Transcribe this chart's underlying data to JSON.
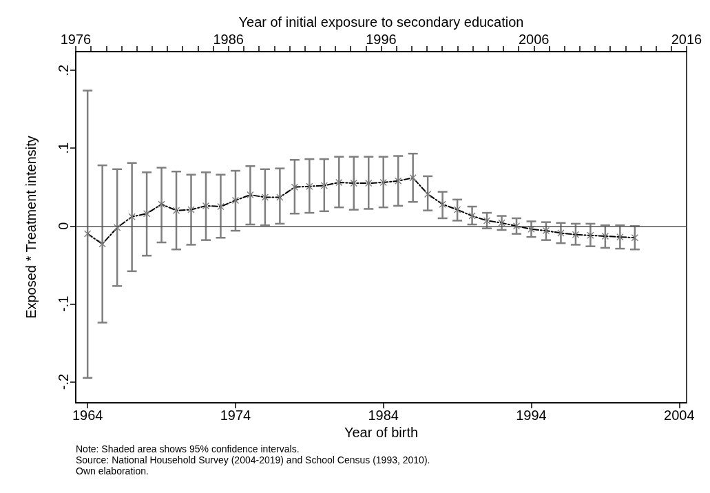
{
  "chart_data": {
    "type": "line",
    "xlabel": "Year of birth",
    "ylabel": "Exposed * Treatment intensity",
    "x2label": "Year of initial exposure to secondary education",
    "x": [
      1964,
      1965,
      1966,
      1967,
      1968,
      1969,
      1970,
      1971,
      1972,
      1973,
      1974,
      1975,
      1976,
      1977,
      1978,
      1979,
      1980,
      1981,
      1982,
      1983,
      1984,
      1985,
      1986,
      1987,
      1988,
      1989,
      1990,
      1991,
      1992,
      1993,
      1994,
      1995,
      1996,
      1997,
      1998,
      1999,
      2000,
      2001
    ],
    "series": [
      {
        "color": "#7f7f7f",
        "values": [
          -0.01,
          -0.023,
          -0.002,
          0.012,
          0.016,
          0.028,
          0.02,
          0.021,
          0.026,
          0.025,
          0.033,
          0.04,
          0.037,
          0.037,
          0.05,
          0.051,
          0.052,
          0.056,
          0.055,
          0.055,
          0.056,
          0.058,
          0.062,
          0.041,
          0.028,
          0.021,
          0.013,
          0.007,
          0.004,
          0.0,
          -0.004,
          -0.006,
          -0.009,
          -0.011,
          -0.012,
          -0.013,
          -0.014,
          -0.015
        ],
        "errors": [
          [
            -0.195,
            0.174
          ],
          [
            -0.124,
            0.078
          ],
          [
            -0.077,
            0.073
          ],
          [
            -0.058,
            0.081
          ],
          [
            -0.038,
            0.069
          ],
          [
            -0.021,
            0.075
          ],
          [
            -0.03,
            0.07
          ],
          [
            -0.024,
            0.066
          ],
          [
            -0.018,
            0.069
          ],
          [
            -0.015,
            0.066
          ],
          [
            -0.006,
            0.071
          ],
          [
            0.002,
            0.077
          ],
          [
            0.001,
            0.073
          ],
          [
            0.003,
            0.074
          ],
          [
            0.016,
            0.085
          ],
          [
            0.017,
            0.086
          ],
          [
            0.019,
            0.086
          ],
          [
            0.024,
            0.089
          ],
          [
            0.021,
            0.089
          ],
          [
            0.022,
            0.089
          ],
          [
            0.024,
            0.089
          ],
          [
            0.026,
            0.09
          ],
          [
            0.031,
            0.093
          ],
          [
            0.02,
            0.064
          ],
          [
            0.01,
            0.044
          ],
          [
            0.007,
            0.034
          ],
          [
            0.002,
            0.025
          ],
          [
            -0.003,
            0.017
          ],
          [
            -0.005,
            0.013
          ],
          [
            -0.01,
            0.01
          ],
          [
            -0.014,
            0.006
          ],
          [
            -0.018,
            0.005
          ],
          [
            -0.022,
            0.004
          ],
          [
            -0.024,
            0.003
          ],
          [
            -0.026,
            0.003
          ],
          [
            -0.028,
            0.001
          ],
          [
            -0.029,
            0.001
          ],
          [
            -0.03,
            0.0
          ]
        ]
      }
    ],
    "marker": "cross",
    "line_style": "dashed",
    "grid": false,
    "xlim": [
      1963.2,
      2004.5
    ],
    "xticks": [
      1964,
      1974,
      1984,
      1994,
      2004
    ],
    "x2lim": [
      1976,
      2016
    ],
    "x2ticks": [
      1976,
      {
        "value": 1977,
        "label": null
      },
      {
        "value": 1978,
        "label": null
      },
      {
        "value": 1979,
        "label": null
      },
      {
        "value": 1980,
        "label": null
      },
      {
        "value": 1981,
        "label": null
      },
      {
        "value": 1982,
        "label": null
      },
      {
        "value": 1983,
        "label": null
      },
      {
        "value": 1984,
        "label": null
      },
      {
        "value": 1985,
        "label": null
      },
      1986,
      {
        "value": 1987,
        "label": null
      },
      {
        "value": 1988,
        "label": null
      },
      {
        "value": 1989,
        "label": null
      },
      {
        "value": 1990,
        "label": null
      },
      {
        "value": 1991,
        "label": null
      },
      {
        "value": 1992,
        "label": null
      },
      {
        "value": 1993,
        "label": null
      },
      {
        "value": 1994,
        "label": null
      },
      {
        "value": 1995,
        "label": null
      },
      1996,
      {
        "value": 1997,
        "label": null
      },
      {
        "value": 1998,
        "label": null
      },
      {
        "value": 1999,
        "label": null
      },
      {
        "value": 2000,
        "label": null
      },
      {
        "value": 2001,
        "label": null
      },
      {
        "value": 2002,
        "label": null
      },
      {
        "value": 2003,
        "label": null
      },
      {
        "value": 2004,
        "label": null
      },
      {
        "value": 2005,
        "label": null
      },
      2006,
      {
        "value": 2007,
        "label": null
      },
      {
        "value": 2008,
        "label": null
      },
      {
        "value": 2009,
        "label": null
      },
      {
        "value": 2010,
        "label": null
      },
      {
        "value": 2011,
        "label": null
      },
      {
        "value": 2012,
        "label": null
      },
      {
        "value": 2013,
        "label": null
      },
      {
        "value": 2014,
        "label": null
      },
      {
        "value": 2015,
        "label": null
      },
      2016
    ],
    "ylim": [
      -0.227,
      0.224
    ],
    "yticks": [
      {
        "value": -0.2,
        "label": "-.2"
      },
      {
        "value": -0.1,
        "label": "-.1"
      },
      0,
      {
        "value": 0.1,
        "label": ".1"
      },
      {
        "value": 0.2,
        "label": ".2"
      }
    ],
    "ref_lines": [
      {
        "axis": "y",
        "value": 0,
        "label": null,
        "color": "#555555"
      }
    ],
    "annotations": [
      "Note: Shaded area shows 95% confidence intervals.",
      "Source: National Household Survey (2004-2019) and School Census (1993, 2010).",
      "Own elaboration."
    ]
  }
}
